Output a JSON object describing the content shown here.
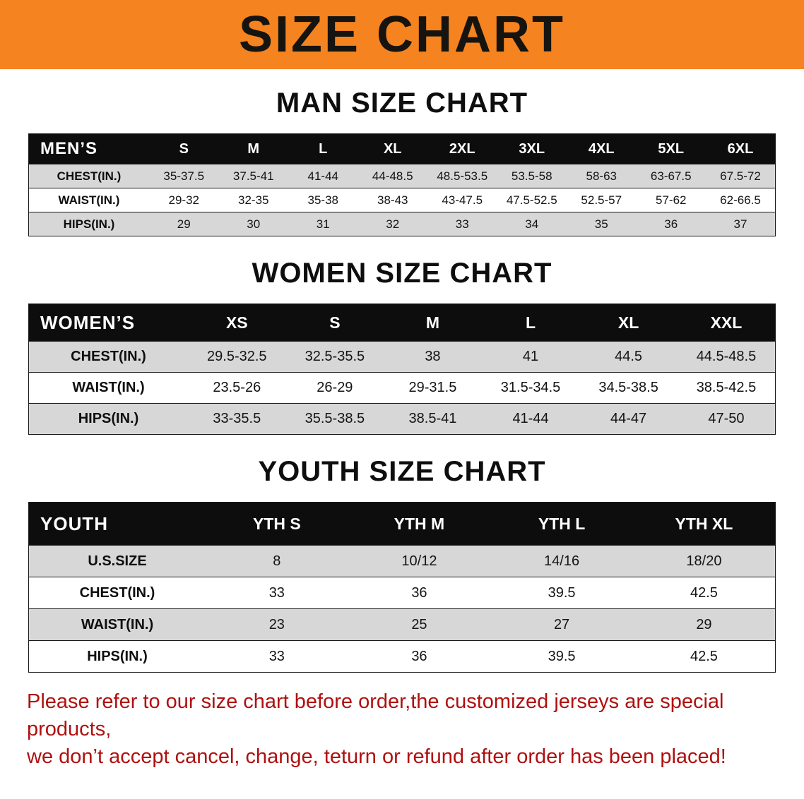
{
  "theme": {
    "banner_bg": "#f5831f",
    "header_row_bg": "#0d0d0d",
    "alt_row_bg": "#d7d7d7",
    "disclaimer_color": "#b01010"
  },
  "banner": {
    "title": "SIZE CHART"
  },
  "sections": [
    {
      "id": "men",
      "heading": "MAN SIZE CHART",
      "table": {
        "header": [
          "MEN’S",
          "S",
          "M",
          "L",
          "XL",
          "2XL",
          "3XL",
          "4XL",
          "5XL",
          "6XL"
        ],
        "rows": [
          {
            "label": "CHEST(IN.)",
            "values": [
              "35-37.5",
              "37.5-41",
              "41-44",
              "44-48.5",
              "48.5-53.5",
              "53.5-58",
              "58-63",
              "63-67.5",
              "67.5-72"
            ]
          },
          {
            "label": "WAIST(IN.)",
            "values": [
              "29-32",
              "32-35",
              "35-38",
              "38-43",
              "43-47.5",
              "47.5-52.5",
              "52.5-57",
              "57-62",
              "62-66.5"
            ]
          },
          {
            "label": "HIPS(IN.)",
            "values": [
              "29",
              "30",
              "31",
              "32",
              "33",
              "34",
              "35",
              "36",
              "37"
            ]
          }
        ]
      }
    },
    {
      "id": "women",
      "heading": "WOMEN SIZE CHART",
      "table": {
        "header": [
          "WOMEN’S",
          "XS",
          "S",
          "M",
          "L",
          "XL",
          "XXL"
        ],
        "rows": [
          {
            "label": "CHEST(IN.)",
            "values": [
              "29.5-32.5",
              "32.5-35.5",
              "38",
              "41",
              "44.5",
              "44.5-48.5"
            ]
          },
          {
            "label": "WAIST(IN.)",
            "values": [
              "23.5-26",
              "26-29",
              "29-31.5",
              "31.5-34.5",
              "34.5-38.5",
              "38.5-42.5"
            ]
          },
          {
            "label": "HIPS(IN.)",
            "values": [
              "33-35.5",
              "35.5-38.5",
              "38.5-41",
              "41-44",
              "44-47",
              "47-50"
            ]
          }
        ]
      }
    },
    {
      "id": "youth",
      "heading": "YOUTH SIZE CHART",
      "table": {
        "header": [
          "YOUTH",
          "YTH S",
          "YTH M",
          "YTH L",
          "YTH XL"
        ],
        "rows": [
          {
            "label": "U.S.SIZE",
            "values": [
              "8",
              "10/12",
              "14/16",
              "18/20"
            ]
          },
          {
            "label": "CHEST(IN.)",
            "values": [
              "33",
              "36",
              "39.5",
              "42.5"
            ]
          },
          {
            "label": "WAIST(IN.)",
            "values": [
              "23",
              "25",
              "27",
              "29"
            ]
          },
          {
            "label": "HIPS(IN.)",
            "values": [
              "33",
              "36",
              "39.5",
              "42.5"
            ]
          }
        ]
      }
    }
  ],
  "footer": {
    "line1": "Please refer to our size chart before order,the customized jerseys are special products,",
    "line2": "we don’t accept cancel, change, teturn or refund after order has been placed!"
  }
}
